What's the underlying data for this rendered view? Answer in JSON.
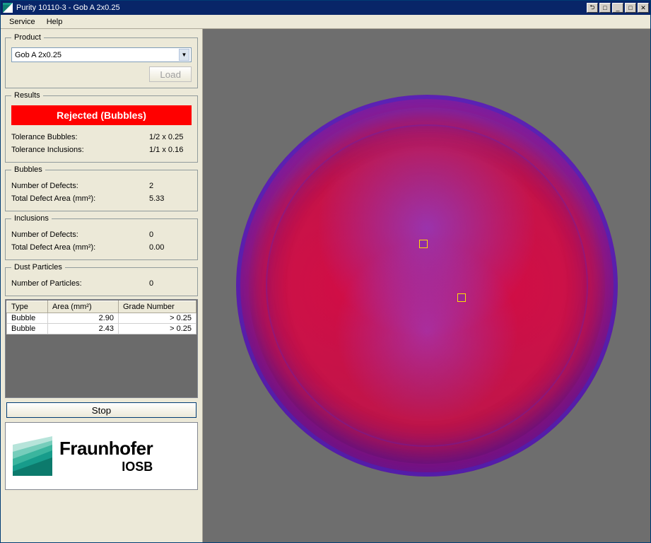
{
  "window": {
    "title": "Purity 10110-3 - Gob A 2x0.25"
  },
  "menu": {
    "service": "Service",
    "help": "Help"
  },
  "product": {
    "legend": "Product",
    "selected": "Gob A 2x0.25",
    "load_label": "Load"
  },
  "results": {
    "legend": "Results",
    "status_text": "Rejected (Bubbles)",
    "status_bg": "#ff0000",
    "status_fg": "#ffffff",
    "tol_bubbles_label": "Tolerance Bubbles:",
    "tol_bubbles_val": "1/2 x 0.25",
    "tol_incl_label": "Tolerance Inclusions:",
    "tol_incl_val": "1/1 x 0.16"
  },
  "bubbles": {
    "legend": "Bubbles",
    "n_label": "Number of Defects:",
    "n_val": "2",
    "area_label": "Total Defect Area (mm²):",
    "area_val": "5.33"
  },
  "inclusions": {
    "legend": "Inclusions",
    "n_label": "Number of Defects:",
    "n_val": "0",
    "area_label": "Total Defect Area (mm²):",
    "area_val": "0.00"
  },
  "dust": {
    "legend": "Dust Particles",
    "n_label": "Number of Particles:",
    "n_val": "0"
  },
  "table": {
    "col_type": "Type",
    "col_area": "Area (mm²)",
    "col_grade": "Grade Number",
    "rows": [
      {
        "type": "Bubble",
        "area": "2.90",
        "grade": "> 0.25"
      },
      {
        "type": "Bubble",
        "area": "2.43",
        "grade": "> 0.25"
      }
    ]
  },
  "stop_label": "Stop",
  "logo": {
    "name": "Fraunhofer",
    "sub": "IOSB",
    "teal": "#179c8b"
  },
  "image": {
    "bg": "#6e6e6e",
    "defects": [
      {
        "left_pct": 48,
        "top_pct": 38
      },
      {
        "left_pct": 58,
        "top_pct": 52
      }
    ],
    "marker_color": "#ffe000"
  }
}
